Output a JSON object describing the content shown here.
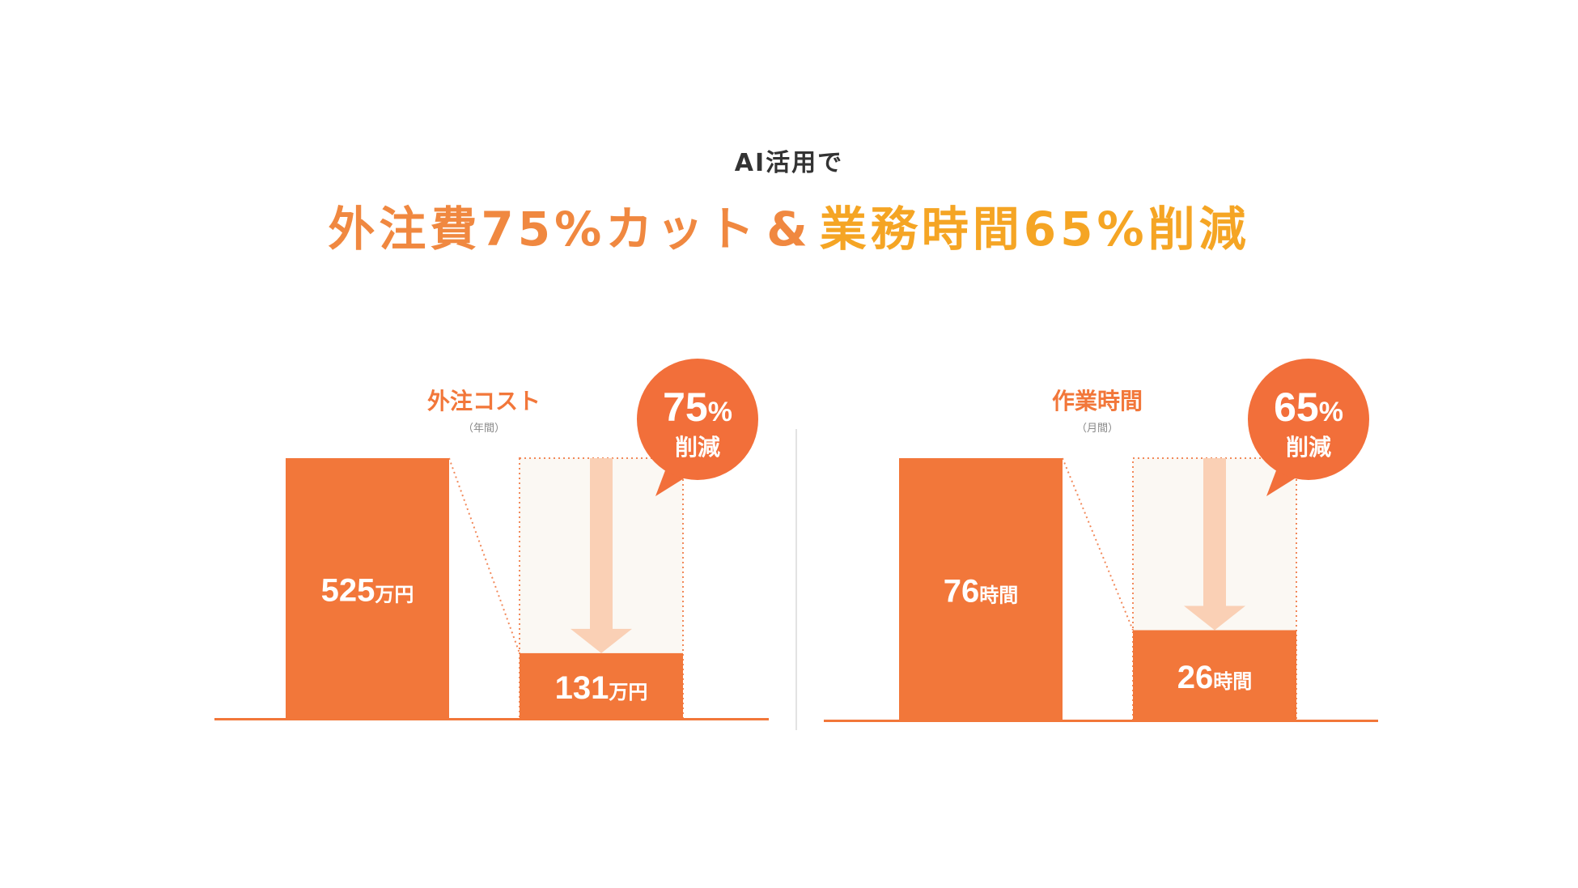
{
  "header": {
    "subtitle": "AI活用で",
    "headline_part1": "外注費75%カット",
    "headline_amp": "&",
    "headline_part2": "業務時間65%削減"
  },
  "colors": {
    "bar": "#F2773A",
    "badge": "#F26F3A",
    "headline_orange": "#F08840",
    "headline_gold": "#F5A524",
    "arrow": "#FAD0B5",
    "panel_bg": "#FBF8F3",
    "dotted": "#F2895A"
  },
  "chart_data": [
    {
      "type": "bar",
      "title": "外注コスト",
      "period": "（年間）",
      "unit": "万円",
      "categories": [
        "",
        ""
      ],
      "values": [
        525,
        131
      ],
      "value_labels": [
        "525",
        "131"
      ],
      "reduction": {
        "percent_num": "75",
        "percent_sign": "%",
        "label": "削減"
      }
    },
    {
      "type": "bar",
      "title": "作業時間",
      "period": "（月間）",
      "unit": "時間",
      "categories": [
        "",
        ""
      ],
      "values": [
        76,
        26
      ],
      "value_labels": [
        "76",
        "26"
      ],
      "reduction": {
        "percent_num": "65",
        "percent_sign": "%",
        "label": "削減"
      }
    }
  ]
}
